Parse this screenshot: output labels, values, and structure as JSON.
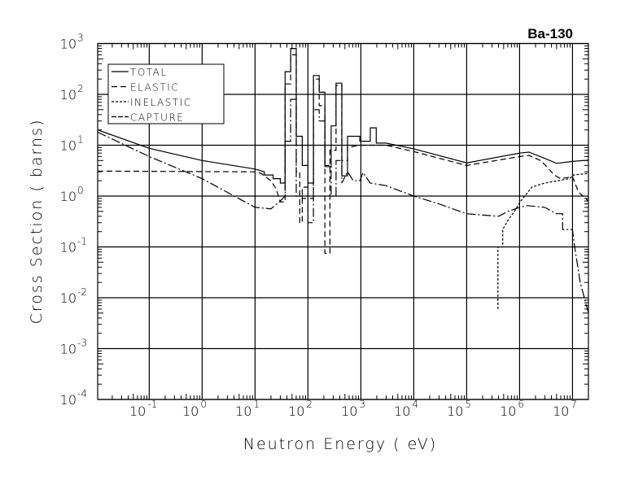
{
  "chart_data": {
    "type": "line",
    "title": "Ba-130",
    "xlabel": "Neutron Energy ( eV)",
    "ylabel": "Cross Section ( barns)",
    "xscale": "log",
    "yscale": "log",
    "xlim": [
      0.0106,
      20000000.0
    ],
    "ylim": [
      0.0001,
      1000
    ],
    "grid": true,
    "legend_position": "top-left",
    "x_ticks": [
      {
        "base": "10",
        "exp": "-1",
        "value": 0.1
      },
      {
        "base": "10",
        "exp": "0",
        "value": 1
      },
      {
        "base": "10",
        "exp": "1",
        "value": 10
      },
      {
        "base": "10",
        "exp": "2",
        "value": 100
      },
      {
        "base": "10",
        "exp": "3",
        "value": 1000
      },
      {
        "base": "10",
        "exp": "4",
        "value": 10000
      },
      {
        "base": "10",
        "exp": "5",
        "value": 100000
      },
      {
        "base": "10",
        "exp": "6",
        "value": 1000000
      },
      {
        "base": "10",
        "exp": "7",
        "value": 10000000
      }
    ],
    "y_ticks": [
      {
        "base": "10",
        "exp": "3",
        "value": 1000
      },
      {
        "base": "10",
        "exp": "2",
        "value": 100
      },
      {
        "base": "10",
        "exp": "1",
        "value": 10
      },
      {
        "base": "10",
        "exp": "0",
        "value": 1
      },
      {
        "base": "10",
        "exp": "-1",
        "value": 0.1
      },
      {
        "base": "10",
        "exp": "-2",
        "value": 0.01
      },
      {
        "base": "10",
        "exp": "-3",
        "value": 0.001
      },
      {
        "base": "10",
        "exp": "-4",
        "value": 0.0001
      }
    ],
    "series": [
      {
        "name": "TOTAL",
        "style": "solid",
        "points": [
          [
            0.0106,
            20
          ],
          [
            0.1,
            8.7
          ],
          [
            1,
            5
          ],
          [
            10,
            3.4
          ],
          [
            15,
            3
          ],
          [
            15,
            2.6
          ],
          [
            22,
            2.6
          ],
          [
            22,
            2.2
          ],
          [
            30,
            2.2
          ],
          [
            30,
            1.8
          ],
          [
            37,
            1.8
          ],
          [
            37,
            280
          ],
          [
            47,
            280
          ],
          [
            47,
            800
          ],
          [
            60,
            800
          ],
          [
            60,
            15
          ],
          [
            78,
            15
          ],
          [
            78,
            4
          ],
          [
            100,
            4
          ],
          [
            100,
            1.8
          ],
          [
            127,
            1.8
          ],
          [
            127,
            235
          ],
          [
            163,
            235
          ],
          [
            163,
            110
          ],
          [
            209,
            110
          ],
          [
            209,
            3.8
          ],
          [
            275,
            3.8
          ],
          [
            275,
            24
          ],
          [
            340,
            24
          ],
          [
            340,
            166
          ],
          [
            437,
            166
          ],
          [
            437,
            2.5
          ],
          [
            560,
            2.5
          ],
          [
            560,
            15
          ],
          [
            955,
            15
          ],
          [
            955,
            12
          ],
          [
            1510,
            12
          ],
          [
            1510,
            22
          ],
          [
            1950,
            22
          ],
          [
            1950,
            11
          ],
          [
            3000,
            11
          ],
          [
            10000,
            8.5
          ],
          [
            100000,
            4.5
          ],
          [
            1000000,
            7
          ],
          [
            1500000,
            7.3
          ],
          [
            3000000,
            5.5
          ],
          [
            5000000,
            4.4
          ],
          [
            10000000,
            4.8
          ],
          [
            20000000,
            5.1
          ]
        ]
      },
      {
        "name": "ELASTIC",
        "style": "dashed",
        "points": [
          [
            0.0106,
            3.1
          ],
          [
            10,
            3.0
          ],
          [
            13,
            2.8
          ],
          [
            20,
            2.0
          ],
          [
            25,
            1.4
          ],
          [
            30,
            0.77
          ],
          [
            37,
            0.77
          ],
          [
            37,
            160
          ],
          [
            47,
            160
          ],
          [
            47,
            600
          ],
          [
            60,
            600
          ],
          [
            60,
            3
          ],
          [
            70,
            3
          ],
          [
            70,
            0.3
          ],
          [
            78,
            0.3
          ],
          [
            78,
            1.5
          ],
          [
            100,
            1.5
          ],
          [
            100,
            0.9
          ],
          [
            127,
            0.9
          ],
          [
            127,
            200
          ],
          [
            163,
            200
          ],
          [
            163,
            60
          ],
          [
            209,
            60
          ],
          [
            209,
            0.075
          ],
          [
            260,
            0.075
          ],
          [
            260,
            8
          ],
          [
            340,
            8
          ],
          [
            340,
            150
          ],
          [
            437,
            150
          ],
          [
            437,
            5
          ],
          [
            560,
            5
          ],
          [
            560,
            9
          ],
          [
            955,
            10
          ],
          [
            3000,
            10
          ],
          [
            10000,
            7.5
          ],
          [
            100000,
            4
          ],
          [
            1000000,
            6
          ],
          [
            1500000,
            6.3
          ],
          [
            2500000,
            5
          ],
          [
            3500000,
            3.5
          ],
          [
            4500000,
            2.6
          ],
          [
            6000000,
            2.2
          ],
          [
            10000000,
            2.4
          ],
          [
            13000000,
            1.2
          ],
          [
            20000000,
            0.8
          ]
        ]
      },
      {
        "name": "INELASTIC",
        "style": "dotted",
        "points": [
          [
            390000,
            0.006
          ],
          [
            390000,
            0.1
          ],
          [
            480000,
            0.1
          ],
          [
            480000,
            0.22
          ],
          [
            620000,
            0.35
          ],
          [
            800000,
            0.5
          ],
          [
            1050000,
            0.8
          ],
          [
            1350000,
            1.1
          ],
          [
            1700000,
            1.5
          ],
          [
            3000000,
            1.8
          ],
          [
            8700000,
            2.2
          ],
          [
            10500000,
            2.6
          ],
          [
            20000000,
            2.8
          ]
        ]
      },
      {
        "name": "CAPTURE",
        "style": "dash-dot",
        "points": [
          [
            0.0106,
            18
          ],
          [
            0.1,
            6
          ],
          [
            1,
            2.2
          ],
          [
            10,
            0.6
          ],
          [
            20,
            0.56
          ],
          [
            30,
            0.8
          ],
          [
            37,
            1
          ],
          [
            37,
            12
          ],
          [
            47,
            12
          ],
          [
            47,
            80
          ],
          [
            60,
            80
          ],
          [
            60,
            1
          ],
          [
            78,
            1
          ],
          [
            78,
            0.9
          ],
          [
            100,
            0.9
          ],
          [
            100,
            0.3
          ],
          [
            127,
            0.3
          ],
          [
            127,
            50
          ],
          [
            163,
            50
          ],
          [
            163,
            30
          ],
          [
            209,
            30
          ],
          [
            209,
            4
          ],
          [
            275,
            4
          ],
          [
            275,
            1
          ],
          [
            340,
            1
          ],
          [
            340,
            5
          ],
          [
            437,
            5
          ],
          [
            437,
            1.8
          ],
          [
            560,
            3
          ],
          [
            720,
            2
          ],
          [
            955,
            2
          ],
          [
            1100,
            2.9
          ],
          [
            1500,
            1.8
          ],
          [
            3000,
            1.6
          ],
          [
            10000,
            1
          ],
          [
            30000,
            0.7
          ],
          [
            100000,
            0.45
          ],
          [
            400000,
            0.4
          ],
          [
            600000,
            0.5
          ],
          [
            1000000,
            0.6
          ],
          [
            1400000,
            0.65
          ],
          [
            3000000,
            0.6
          ],
          [
            5000000,
            0.45
          ],
          [
            6500000,
            0.45
          ],
          [
            6500000,
            0.22
          ],
          [
            10000000,
            0.22
          ],
          [
            11000000,
            0.1
          ],
          [
            14000000,
            0.02
          ],
          [
            20000000,
            0.005
          ]
        ]
      }
    ]
  }
}
